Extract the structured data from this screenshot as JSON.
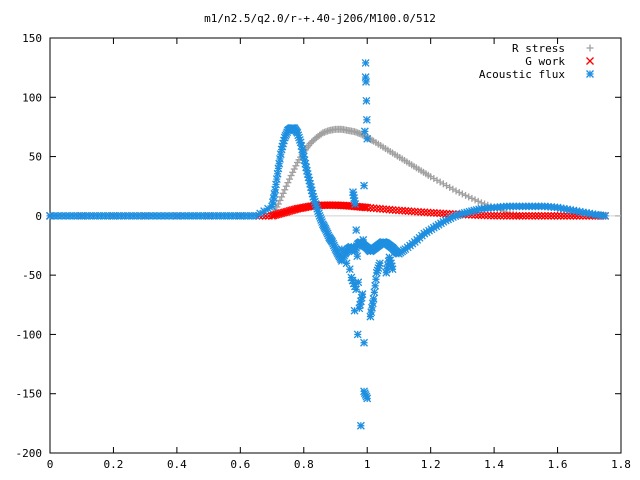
{
  "chart_data": {
    "type": "scatter",
    "title": "m1/n2.5/q2.0/r-+.40-j206/M100.0/512",
    "xlabel": "",
    "ylabel": "",
    "xlim": [
      0,
      1.8
    ],
    "ylim": [
      -200,
      150
    ],
    "x_ticks": [
      "0",
      "0.2",
      "0.4",
      "0.6",
      "0.8",
      "1",
      "1.2",
      "1.4",
      "1.6",
      "1.8"
    ],
    "y_ticks": [
      "150",
      "100",
      "50",
      "0",
      "-50",
      "-100",
      "-150",
      "-200"
    ],
    "legend_position": "top-right",
    "grid": false,
    "series": [
      {
        "name": "R stress",
        "marker": "plus",
        "color": "#a0a0a0",
        "x": [
          0.7,
          0.72,
          0.74,
          0.76,
          0.78,
          0.8,
          0.82,
          0.84,
          0.86,
          0.88,
          0.9,
          0.92,
          0.94,
          0.96,
          0.98,
          1.0,
          1.02,
          1.05,
          1.08,
          1.11,
          1.14,
          1.17,
          1.2,
          1.24,
          1.28,
          1.32,
          1.36,
          1.4,
          1.44,
          1.48
        ],
        "y": [
          0,
          10,
          22,
          34,
          45,
          54,
          61,
          66,
          70,
          72,
          73,
          73,
          72,
          71,
          69,
          66,
          63,
          58,
          53,
          48,
          43,
          38,
          33,
          27,
          21,
          16,
          11,
          7,
          3,
          0
        ]
      },
      {
        "name": "G work",
        "marker": "cross",
        "color": "#ff0000",
        "x": [
          0,
          0.1,
          0.2,
          0.3,
          0.4,
          0.5,
          0.6,
          0.66,
          0.7,
          0.72,
          0.74,
          0.76,
          0.78,
          0.8,
          0.82,
          0.84,
          0.86,
          0.88,
          0.9,
          0.92,
          0.94,
          0.96,
          0.98,
          1.0,
          1.04,
          1.08,
          1.12,
          1.16,
          1.2,
          1.24,
          1.28,
          1.32,
          1.36,
          1.4,
          1.44,
          1.48,
          1.52,
          1.56,
          1.6,
          1.64,
          1.68,
          1.72,
          1.75
        ],
        "y": [
          0,
          0,
          0,
          0,
          0,
          0,
          0,
          0,
          0,
          1.5,
          3,
          4.5,
          6,
          7,
          8,
          8.5,
          9,
          9,
          9,
          8.8,
          8.5,
          8,
          7.5,
          7,
          6,
          5,
          4.2,
          3.4,
          2.7,
          2,
          1.4,
          0.9,
          0.4,
          0.1,
          0,
          0,
          0,
          0,
          0,
          0,
          0,
          0,
          0
        ]
      },
      {
        "name": "Acoustic flux",
        "marker": "star",
        "color": "#1f8fe0",
        "x": [
          0,
          0.05,
          0.1,
          0.15,
          0.2,
          0.25,
          0.3,
          0.35,
          0.4,
          0.45,
          0.5,
          0.55,
          0.6,
          0.65,
          0.7,
          0.71,
          0.72,
          0.73,
          0.74,
          0.75,
          0.76,
          0.77,
          0.78,
          0.79,
          0.8,
          0.81,
          0.82,
          0.83,
          0.84,
          0.85,
          0.86,
          0.87,
          0.88,
          0.89,
          0.9,
          0.91,
          0.92,
          0.93,
          0.94,
          0.95,
          0.96,
          0.97,
          0.98,
          0.99,
          1.0,
          1.01,
          1.02,
          1.03,
          1.04,
          1.05,
          1.06,
          1.07,
          1.08,
          1.09,
          1.1,
          1.12,
          1.15,
          1.18,
          1.21,
          1.24,
          1.27,
          1.3,
          1.33,
          1.36,
          1.4,
          1.44,
          1.48,
          1.52,
          1.56,
          1.6,
          1.64,
          1.68,
          1.72,
          1.75,
          0.955,
          0.962,
          0.975,
          0.985,
          0.995,
          0.995,
          1.0,
          0.99,
          0.97,
          0.96,
          0.945,
          0.935,
          1.01,
          1.02,
          1.03,
          1.04,
          0.95,
          0.965,
          1.06,
          1.07,
          1.08,
          0.92,
          0.99,
          1.0,
          0.98
        ],
        "y": [
          0,
          0,
          0,
          0,
          0,
          0,
          0,
          0,
          0,
          0,
          0,
          0,
          0,
          0,
          8,
          22,
          40,
          56,
          66,
          72,
          74,
          74,
          70,
          62,
          50,
          38,
          27,
          16,
          8,
          0,
          -7,
          -12,
          -18,
          -22,
          -28,
          -33,
          -38,
          -32,
          -28,
          -26,
          -30,
          -24,
          -22,
          -25,
          -27,
          -30,
          -28,
          -26,
          -24,
          -22,
          -23,
          -25,
          -27,
          -30,
          -32,
          -28,
          -22,
          -15,
          -10,
          -5,
          -1,
          2,
          4,
          6,
          7,
          8,
          8,
          8,
          8,
          7,
          5,
          3,
          1,
          0,
          20,
          10,
          -78,
          -66,
          117,
          129,
          65,
          -107,
          -100,
          -80,
          -45,
          -40,
          -85,
          -70,
          -48,
          -40,
          -52,
          -62,
          -48,
          -35,
          -45,
          -28,
          -148,
          -154,
          -177
        ]
      }
    ]
  }
}
